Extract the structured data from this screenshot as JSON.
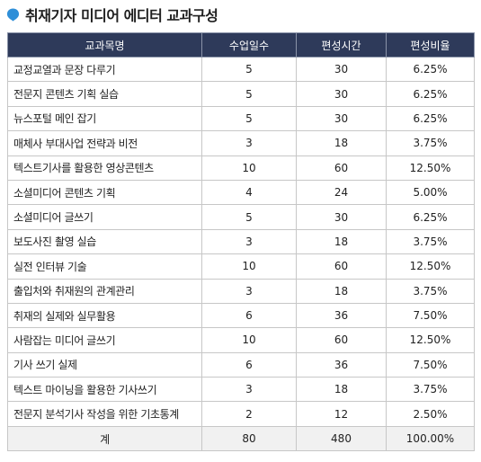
{
  "title": "취재기자 미디어 에디터 교과구성",
  "icon": {
    "name": "location-pin-icon",
    "color": "#2f8fd8"
  },
  "table": {
    "headers": [
      "교과목명",
      "수업일수",
      "편성시간",
      "편성비율"
    ],
    "rows": [
      [
        "교정교열과 문장 다루기",
        "5",
        "30",
        "6.25%"
      ],
      [
        "전문지 콘텐츠 기획 실습",
        "5",
        "30",
        "6.25%"
      ],
      [
        "뉴스포털 메인 잡기",
        "5",
        "30",
        "6.25%"
      ],
      [
        "매체사 부대사업 전략과 비전",
        "3",
        "18",
        "3.75%"
      ],
      [
        "텍스트기사를 활용한 영상콘텐츠",
        "10",
        "60",
        "12.50%"
      ],
      [
        "소셜미디어 콘텐츠 기획",
        "4",
        "24",
        "5.00%"
      ],
      [
        "소셜미디어 글쓰기",
        "5",
        "30",
        "6.25%"
      ],
      [
        "보도사진 촬영 실습",
        "3",
        "18",
        "3.75%"
      ],
      [
        "실전 인터뷰 기술",
        "10",
        "60",
        "12.50%"
      ],
      [
        "출입처와 취재원의 관계관리",
        "3",
        "18",
        "3.75%"
      ],
      [
        "취재의 실제와 실무활용",
        "6",
        "36",
        "7.50%"
      ],
      [
        "사람잡는 미디어 글쓰기",
        "10",
        "60",
        "12.50%"
      ],
      [
        "기사 쓰기 실제",
        "6",
        "36",
        "7.50%"
      ],
      [
        "텍스트 마이닝을 활용한 기사쓰기",
        "3",
        "18",
        "3.75%"
      ],
      [
        "전문지 분석기사 작성을 위한 기초통계",
        "2",
        "12",
        "2.50%"
      ]
    ],
    "total": [
      "계",
      "80",
      "480",
      "100.00%"
    ]
  }
}
